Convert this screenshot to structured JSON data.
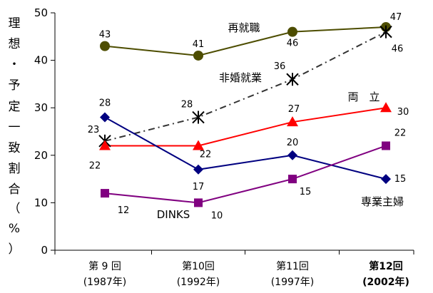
{
  "chart_data": {
    "type": "line",
    "ylabel_chars": [
      "理",
      "想",
      "・",
      "予",
      "定",
      "一",
      "致",
      "割",
      "合",
      "（",
      "%",
      "）"
    ],
    "ylim": [
      0,
      50
    ],
    "yticks": [
      0,
      10,
      20,
      30,
      40,
      50
    ],
    "grid": false,
    "categories": [
      {
        "line1": "第 9 回",
        "line2": "(1987年)",
        "bold": false
      },
      {
        "line1": "第10回",
        "line2": "(1992年)",
        "bold": false
      },
      {
        "line1": "第11回",
        "line2": "(1997年)",
        "bold": false
      },
      {
        "line1": "第12回",
        "line2": "(2002年)",
        "bold": true
      }
    ],
    "series": [
      {
        "name": "再就職",
        "values": [
          43,
          41,
          46,
          47
        ],
        "labels": [
          "43",
          "41",
          "46",
          "47"
        ],
        "color": "#4d4d00",
        "marker": "circle",
        "dash": ""
      },
      {
        "name": "非婚就業",
        "values": [
          23,
          28,
          36,
          46
        ],
        "labels": [
          "23",
          "28",
          "36",
          "46"
        ],
        "color": "#333333",
        "marker": "asterisk",
        "dash": "9,5,2,5"
      },
      {
        "name": "両　立",
        "values": [
          22,
          22,
          27,
          30
        ],
        "labels": [
          "22",
          "22",
          "27",
          "30"
        ],
        "color": "#ff0000",
        "marker": "triangle",
        "dash": ""
      },
      {
        "name": "専業主婦",
        "values": [
          28,
          17,
          20,
          15
        ],
        "labels": [
          "28",
          "17",
          "20",
          "15"
        ],
        "color": "#000080",
        "marker": "diamond",
        "dash": ""
      },
      {
        "name": "DINKS",
        "values": [
          12,
          10,
          15,
          22
        ],
        "labels": [
          "12",
          "10",
          "15",
          "22"
        ],
        "color": "#800080",
        "marker": "square",
        "dash": ""
      }
    ]
  }
}
